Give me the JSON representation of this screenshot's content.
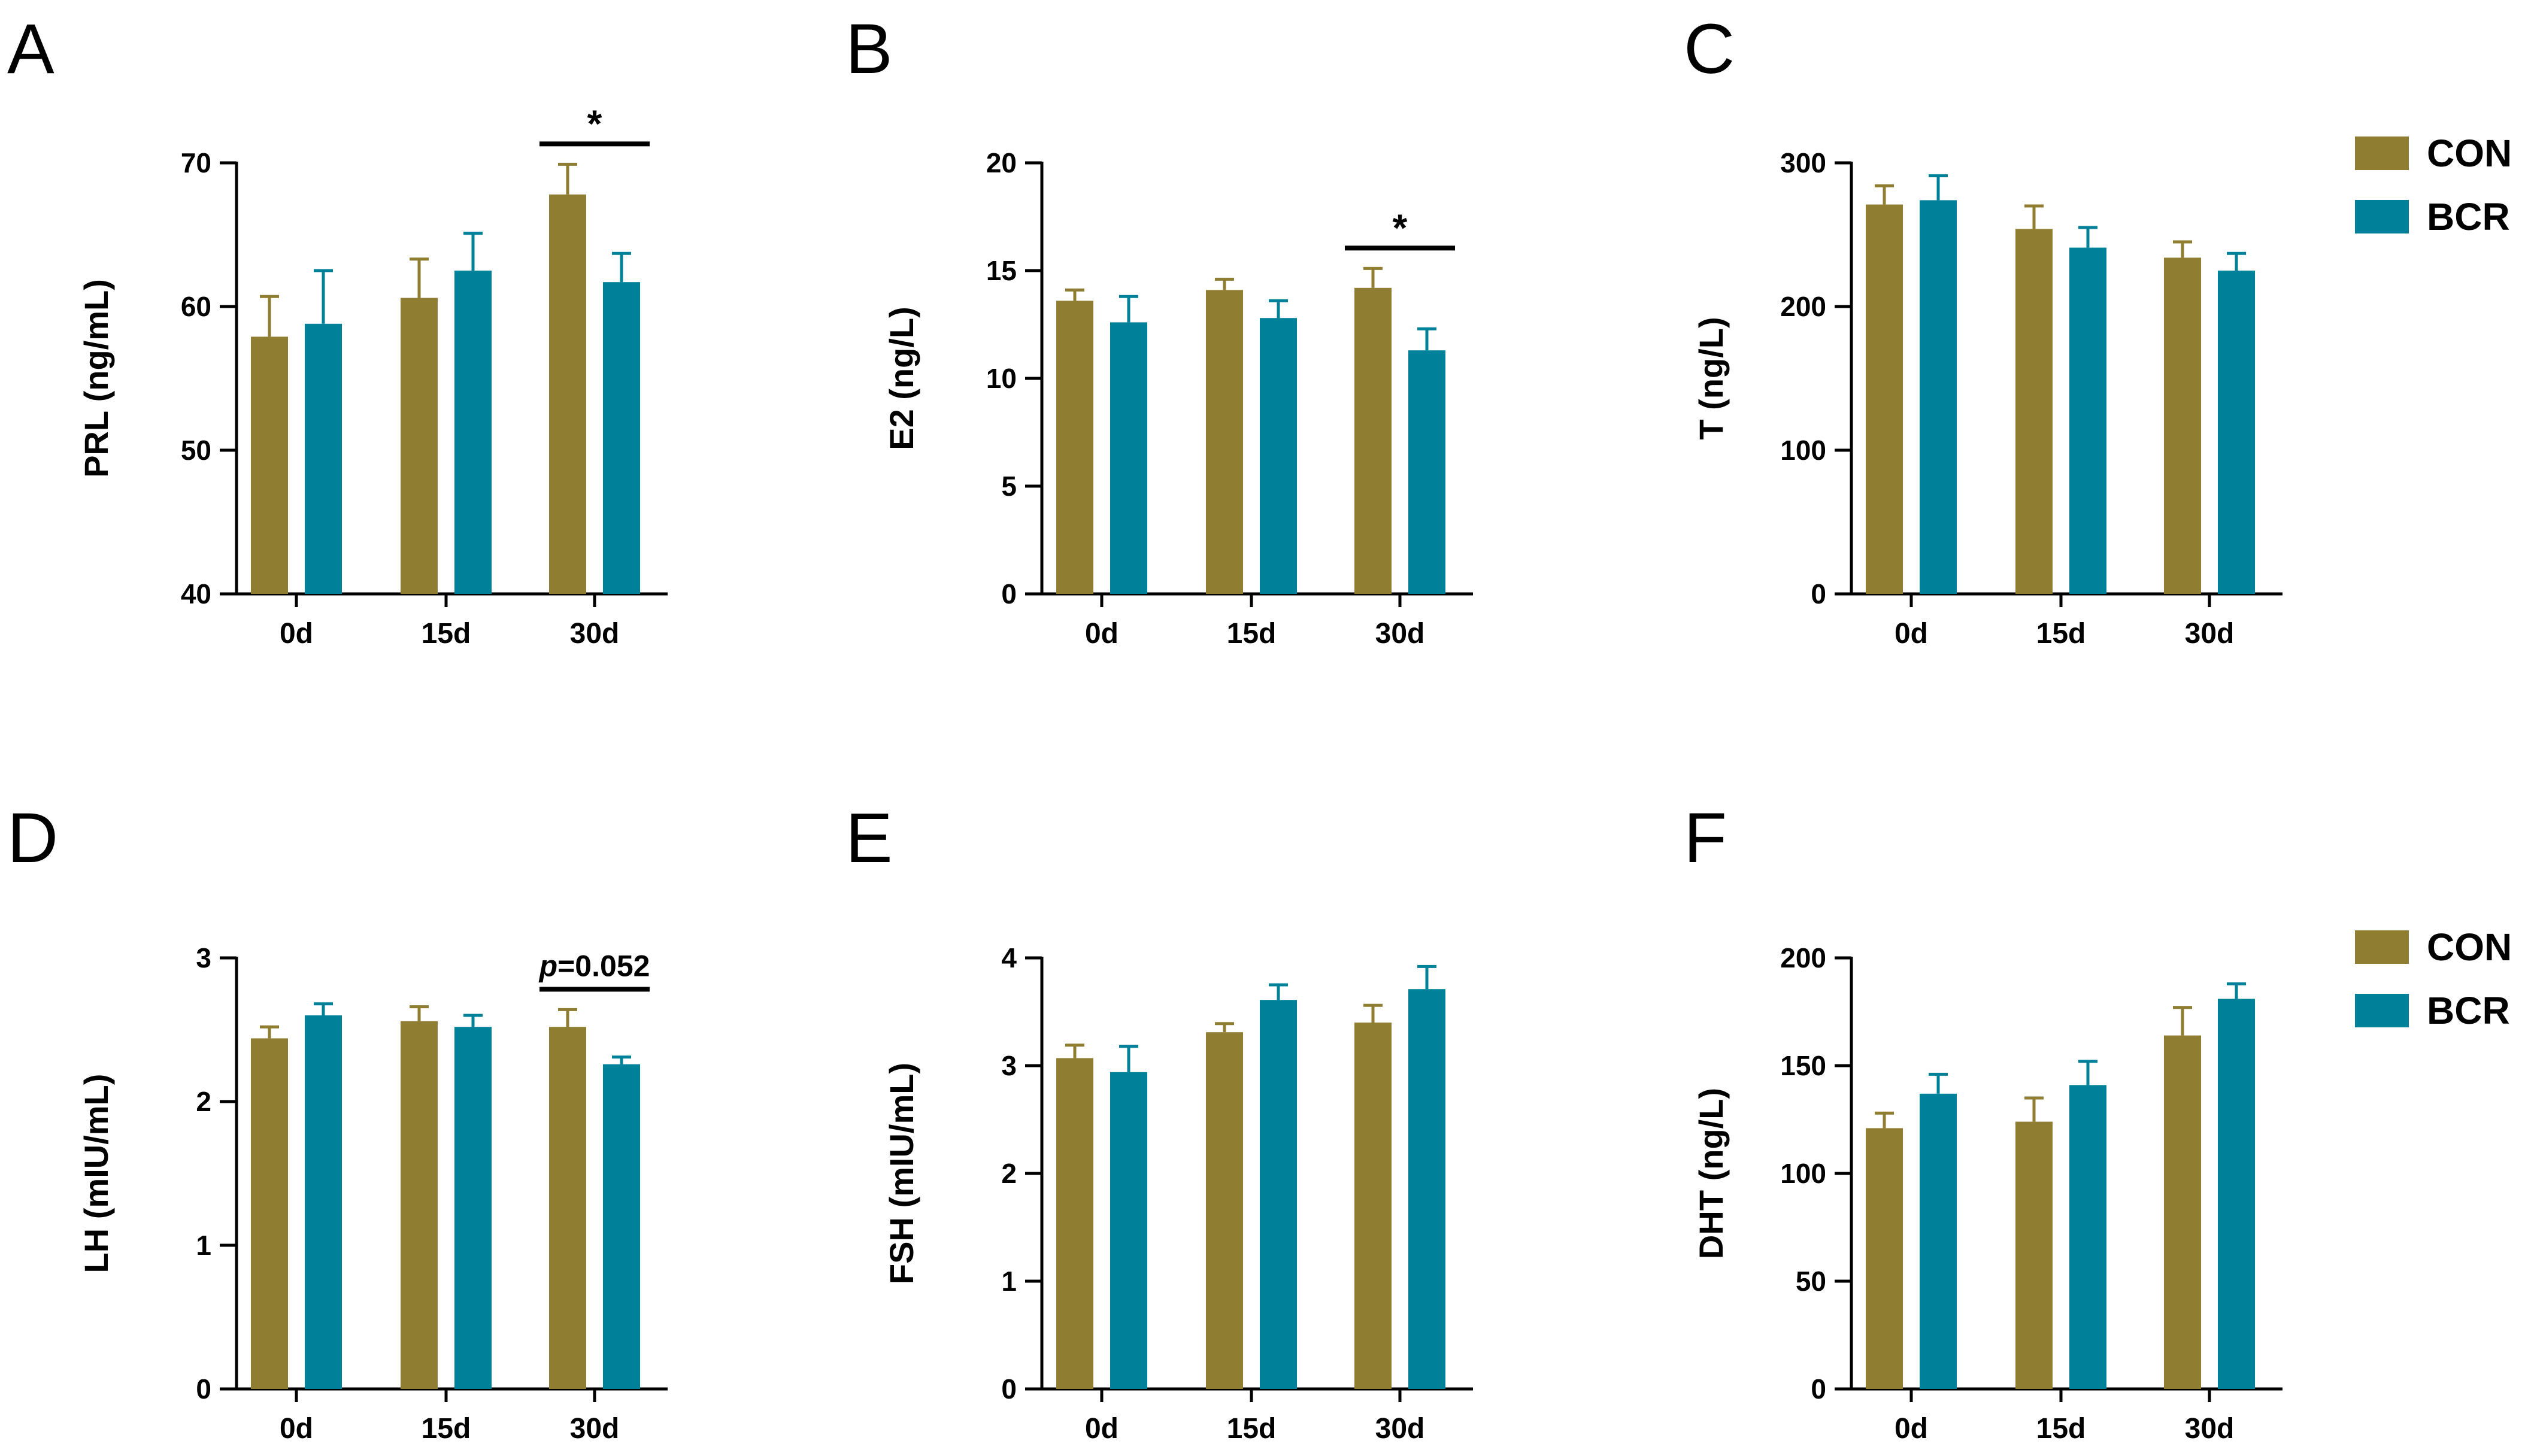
{
  "colors": {
    "CON": "#8f7d31",
    "BCR": "#00819a",
    "axis": "#000000"
  },
  "legends": [
    {
      "items": [
        {
          "label": "CON",
          "color_key": "CON"
        },
        {
          "label": "BCR",
          "color_key": "BCR"
        }
      ]
    },
    {
      "items": [
        {
          "label": "CON",
          "color_key": "CON"
        },
        {
          "label": "BCR",
          "color_key": "BCR"
        }
      ]
    }
  ],
  "chart_data": [
    {
      "panel": "A",
      "type": "bar",
      "ylabel": "PRL (ng/mL)",
      "categories": [
        "0d",
        "15d",
        "30d"
      ],
      "ylim": [
        40,
        70
      ],
      "yticks": [
        40,
        50,
        60,
        70
      ],
      "series": [
        {
          "name": "CON",
          "values": [
            57.9,
            60.6,
            67.8
          ],
          "errors": [
            2.8,
            2.7,
            2.1
          ]
        },
        {
          "name": "BCR",
          "values": [
            58.8,
            62.5,
            61.7
          ],
          "errors": [
            3.7,
            2.6,
            2.0
          ]
        }
      ],
      "annotations": [
        {
          "label": "*",
          "category_index": 2
        }
      ]
    },
    {
      "panel": "B",
      "type": "bar",
      "ylabel": "E2 (ng/L)",
      "categories": [
        "0d",
        "15d",
        "30d"
      ],
      "ylim": [
        0,
        20
      ],
      "yticks": [
        0,
        5,
        10,
        15,
        20
      ],
      "series": [
        {
          "name": "CON",
          "values": [
            13.6,
            14.1,
            14.2
          ],
          "errors": [
            0.5,
            0.5,
            0.9
          ]
        },
        {
          "name": "BCR",
          "values": [
            12.6,
            12.8,
            11.3
          ],
          "errors": [
            1.2,
            0.8,
            1.0
          ]
        }
      ],
      "annotations": [
        {
          "label": "*",
          "category_index": 2
        }
      ]
    },
    {
      "panel": "C",
      "type": "bar",
      "ylabel": "T (ng/L)",
      "categories": [
        "0d",
        "15d",
        "30d"
      ],
      "ylim": [
        0,
        300
      ],
      "yticks": [
        0,
        100,
        200,
        300
      ],
      "series": [
        {
          "name": "CON",
          "values": [
            271,
            254,
            234
          ],
          "errors": [
            13,
            16,
            11
          ]
        },
        {
          "name": "BCR",
          "values": [
            274,
            241,
            225
          ],
          "errors": [
            17,
            14,
            12
          ]
        }
      ],
      "annotations": []
    },
    {
      "panel": "D",
      "type": "bar",
      "ylabel": "LH (mIU/mL)",
      "categories": [
        "0d",
        "15d",
        "30d"
      ],
      "ylim": [
        0,
        3
      ],
      "yticks": [
        0,
        1,
        2,
        3
      ],
      "series": [
        {
          "name": "CON",
          "values": [
            2.44,
            2.56,
            2.52
          ],
          "errors": [
            0.08,
            0.1,
            0.12
          ]
        },
        {
          "name": "BCR",
          "values": [
            2.6,
            2.52,
            2.26
          ],
          "errors": [
            0.08,
            0.08,
            0.05
          ]
        }
      ],
      "annotations": [
        {
          "label_prefix": "p",
          "label_suffix": "=0.052",
          "category_index": 2
        }
      ]
    },
    {
      "panel": "E",
      "type": "bar",
      "ylabel": "FSH (mIU/mL)",
      "categories": [
        "0d",
        "15d",
        "30d"
      ],
      "ylim": [
        0,
        4
      ],
      "yticks": [
        0,
        1,
        2,
        3,
        4
      ],
      "series": [
        {
          "name": "CON",
          "values": [
            3.07,
            3.31,
            3.4
          ],
          "errors": [
            0.12,
            0.08,
            0.16
          ]
        },
        {
          "name": "BCR",
          "values": [
            2.94,
            3.61,
            3.71
          ],
          "errors": [
            0.24,
            0.14,
            0.21
          ]
        }
      ],
      "annotations": []
    },
    {
      "panel": "F",
      "type": "bar",
      "ylabel": "DHT (ng/L)",
      "categories": [
        "0d",
        "15d",
        "30d"
      ],
      "ylim": [
        0,
        200
      ],
      "yticks": [
        0,
        50,
        100,
        150,
        200
      ],
      "series": [
        {
          "name": "CON",
          "values": [
            121,
            124,
            164
          ],
          "errors": [
            7,
            11,
            13
          ]
        },
        {
          "name": "BCR",
          "values": [
            137,
            141,
            181
          ],
          "errors": [
            9,
            11,
            7
          ]
        }
      ],
      "annotations": []
    }
  ]
}
